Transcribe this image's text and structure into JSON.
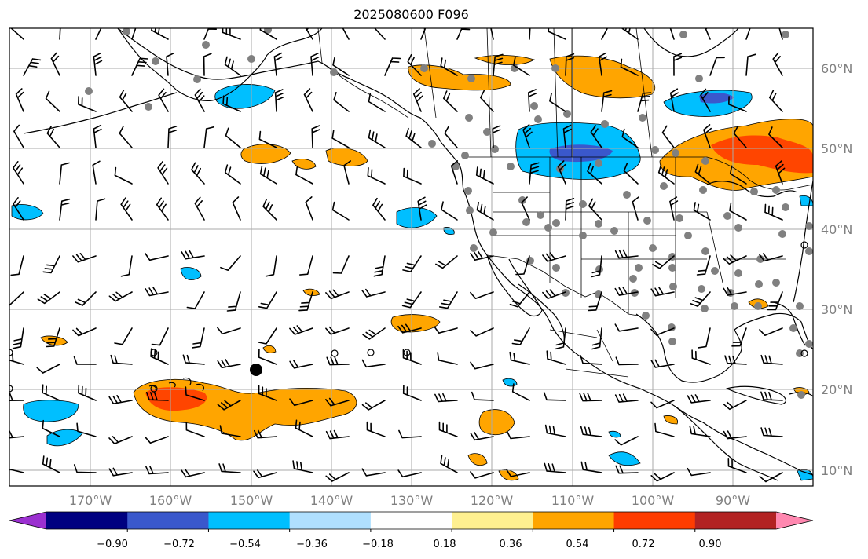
{
  "title": "2025080600 F096",
  "lon_labels": [
    "170°W",
    "160°W",
    "150°W",
    "140°W",
    "130°W",
    "120°W",
    "110°W",
    "100°W",
    "90°W"
  ],
  "lat_labels": [
    "60°N",
    "50°N",
    "40°N",
    "30°N",
    "20°N",
    "10°N"
  ],
  "colorbar": {
    "colors": [
      "#9b30d0",
      "#000080",
      "#3a58cc",
      "#00bfff",
      "#b0e0ff",
      "#ffffff",
      "#fff090",
      "#ffa500",
      "#ff3c00",
      "#b22222",
      "#ff88b0"
    ],
    "tick_labels": [
      "−0.90",
      "−0.72",
      "−0.54",
      "−0.36",
      "−0.18",
      "0.18",
      "0.36",
      "0.54",
      "0.72",
      "0.90"
    ]
  },
  "map_colors": {
    "frame": "#000000",
    "grid": "#aaaaaa",
    "coast": "#000000",
    "station": "#808080",
    "barb": "#000000"
  }
}
